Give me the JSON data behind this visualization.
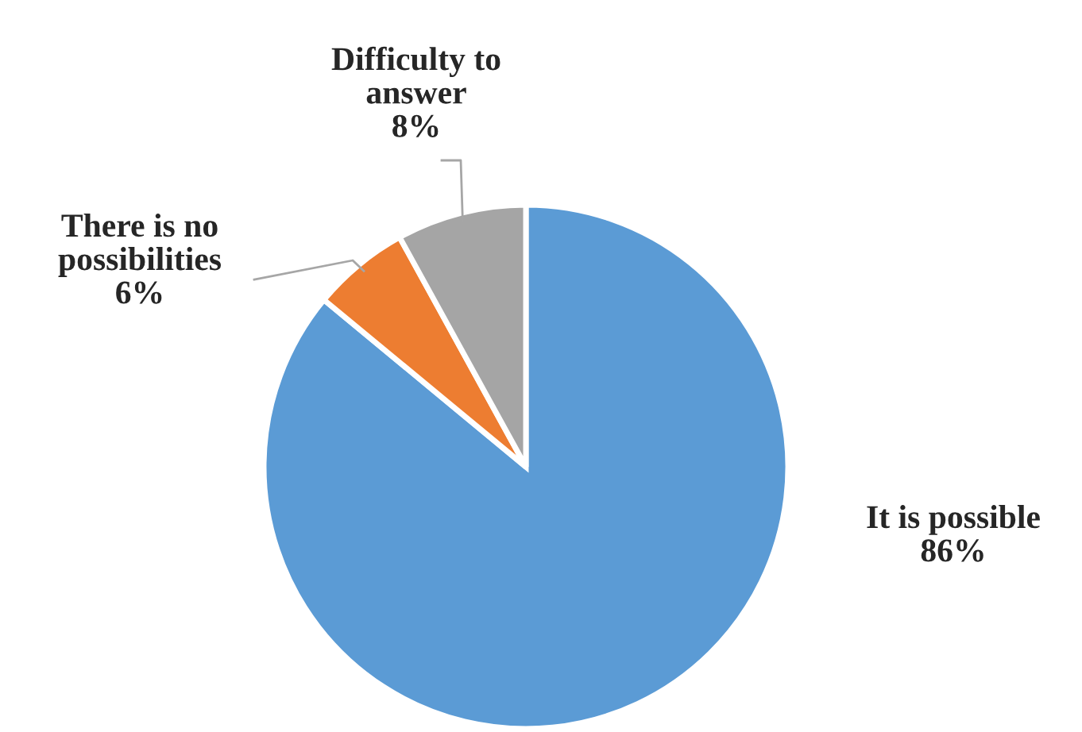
{
  "chart_data": {
    "type": "pie",
    "categories": [
      "It is possible",
      "There is no possibilities",
      "Difficulty to answer"
    ],
    "values": [
      86,
      6,
      8
    ],
    "value_labels": [
      "86%",
      "6%",
      "8%"
    ],
    "colors": [
      "#5b9bd5",
      "#ed7d31",
      "#a5a5a5"
    ]
  }
}
